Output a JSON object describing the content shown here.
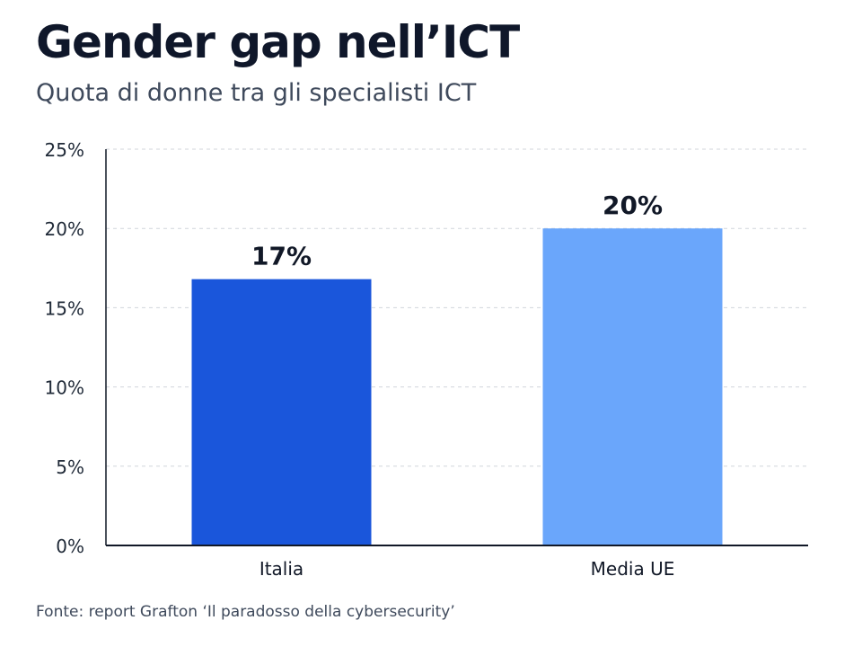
{
  "header": {
    "title": "Gender gap nell’ICT",
    "subtitle": "Quota di donne tra gli specialisti ICT"
  },
  "footer": {
    "source": "Fonte: report Grafton ‘Il paradosso della cybersecurity’"
  },
  "chart_data": {
    "type": "bar",
    "title": "Gender gap nell’ICT",
    "subtitle": "Quota di donne tra gli specialisti ICT",
    "xlabel": "",
    "ylabel": "",
    "categories": [
      "Italia",
      "Media UE"
    ],
    "values": [
      16.8,
      20
    ],
    "data_labels": [
      "17%",
      "20%"
    ],
    "yticks": [
      0,
      5,
      10,
      15,
      20,
      25
    ],
    "ytick_labels": [
      "0%",
      "5%",
      "10%",
      "15%",
      "20%",
      "25%"
    ],
    "ylim": [
      0,
      25
    ],
    "grid": true,
    "legend": "none",
    "colors": [
      "#1a56db",
      "#6aa6fb"
    ],
    "grid_color": "#d1d5db",
    "axis_color": "#111827"
  }
}
